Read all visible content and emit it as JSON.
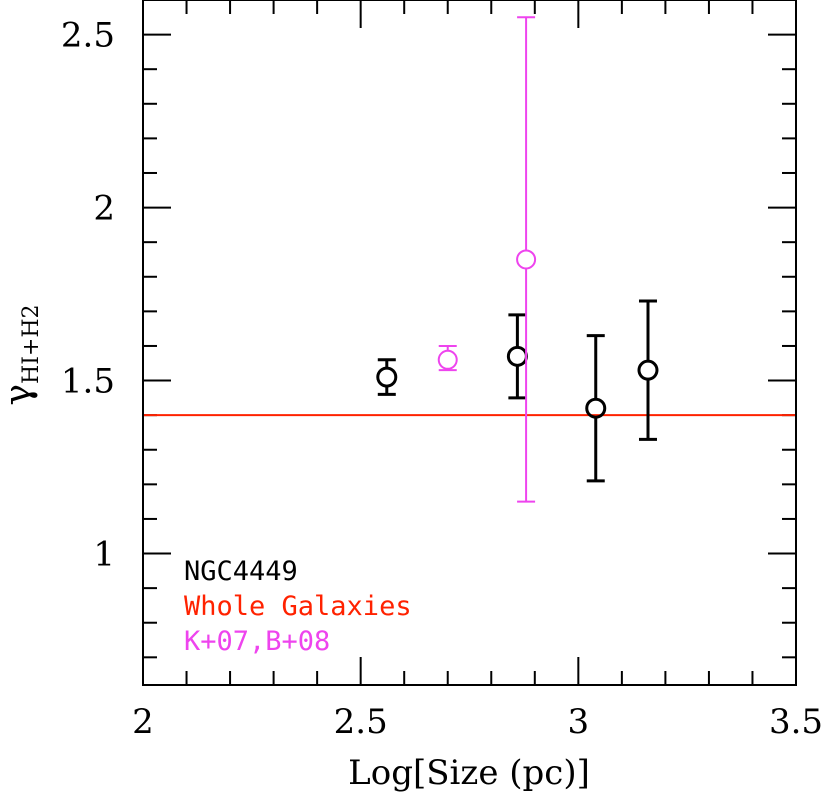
{
  "chart_data": {
    "type": "scatter",
    "xlabel": "Log[Size (pc)]",
    "ylabel": {
      "symbol": "γ",
      "subscript": "HI+H2"
    },
    "xlim": [
      2.0,
      3.5
    ],
    "ylim": [
      0.62,
      2.6
    ],
    "x_ticks_labeled": [
      {
        "value": 2.0,
        "label": "2"
      },
      {
        "value": 2.5,
        "label": "2.5"
      },
      {
        "value": 3.0,
        "label": "3"
      },
      {
        "value": 3.5,
        "label": "3.5"
      }
    ],
    "y_ticks_labeled": [
      {
        "value": 1.0,
        "label": "1"
      },
      {
        "value": 1.5,
        "label": "1.5"
      },
      {
        "value": 2.0,
        "label": "2"
      },
      {
        "value": 2.5,
        "label": "2.5"
      }
    ],
    "x_minor_step": 0.1,
    "y_minor_step": 0.1,
    "grid": false,
    "legend_position": "bottom-left",
    "series": [
      {
        "name": "NGC4449",
        "color": "#000000",
        "marker": "open-circle",
        "points": [
          {
            "x": 2.56,
            "y": 1.51,
            "ylo": 1.46,
            "yhi": 1.56
          },
          {
            "x": 2.86,
            "y": 1.57,
            "ylo": 1.45,
            "yhi": 1.69
          },
          {
            "x": 3.04,
            "y": 1.42,
            "ylo": 1.21,
            "yhi": 1.63
          },
          {
            "x": 3.16,
            "y": 1.53,
            "ylo": 1.33,
            "yhi": 1.73
          }
        ]
      },
      {
        "name": "K+07,B+08",
        "color": "#ee44ee",
        "marker": "open-circle",
        "points": [
          {
            "x": 2.7,
            "y": 1.56,
            "ylo": 1.53,
            "yhi": 1.6
          },
          {
            "x": 2.88,
            "y": 1.85,
            "ylo": 1.15,
            "yhi": 2.55
          }
        ]
      }
    ],
    "reference_lines": [
      {
        "name": "Whole Galaxies",
        "color": "#ff2200",
        "y": 1.4
      }
    ],
    "legend": [
      {
        "label": "NGC4449",
        "color": "#000000"
      },
      {
        "label": "Whole Galaxies",
        "color": "#ff2200"
      },
      {
        "label": "K+07,B+08",
        "color": "#ee44ee"
      }
    ]
  }
}
